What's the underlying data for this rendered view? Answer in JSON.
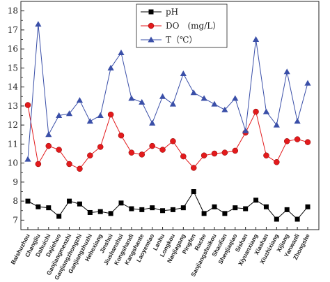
{
  "chart_data": {
    "type": "line",
    "title": "",
    "xlabel": "",
    "ylabel": "",
    "ylim": [
      6.5,
      18.5
    ],
    "yticks": [
      7,
      8,
      9,
      10,
      11,
      12,
      13,
      14,
      15,
      16,
      17,
      18
    ],
    "grid": false,
    "legend_position": "top-center",
    "categories": [
      "Baishuzhou",
      "Changliu",
      "Dahuichi",
      "Dajiehuo",
      "Ganjiangmenzhi",
      "Ganjiangzhongzhi",
      "Ganjiangzhuzhi",
      "Hehexiang",
      "Jinshui",
      "Jiushanshui",
      "Kongshandi",
      "Kangshante",
      "Laoyemiao",
      "Lanhu",
      "Longkou",
      "Nanjiagang",
      "Pingfen",
      "Rache",
      "Sanjiangshuikou",
      "Shaolian",
      "Shenjiaqiao",
      "Sishan",
      "Xiyuanxiang",
      "Xiashan",
      "Xiuzhixiang",
      "Xijiang",
      "Yanwanli",
      "Zhongshe"
    ],
    "series": [
      {
        "name": "pH",
        "color": "#000000",
        "marker": "square",
        "values": [
          8.0,
          7.7,
          7.65,
          7.2,
          8.0,
          7.85,
          7.4,
          7.45,
          7.35,
          7.9,
          7.6,
          7.55,
          7.65,
          7.5,
          7.55,
          7.65,
          8.5,
          7.35,
          7.7,
          7.35,
          7.65,
          7.6,
          8.05,
          7.7,
          7.05,
          7.55,
          7.05,
          7.7
        ]
      },
      {
        "name": "DO　(mg/L）",
        "color": "#e31a1c",
        "marker": "circle",
        "values": [
          13.05,
          9.95,
          10.9,
          10.7,
          9.95,
          9.7,
          10.4,
          10.85,
          12.55,
          11.45,
          10.55,
          10.45,
          10.9,
          10.7,
          11.15,
          10.35,
          9.75,
          10.4,
          10.5,
          10.55,
          10.65,
          11.6,
          12.7,
          10.4,
          10.05,
          11.15,
          11.25,
          11.1
        ]
      },
      {
        "name": "T（℃）",
        "color": "#3a4fa8",
        "marker": "triangle",
        "values": [
          10.2,
          17.3,
          11.5,
          12.5,
          12.6,
          13.3,
          12.2,
          12.5,
          15.0,
          15.8,
          13.4,
          13.2,
          12.1,
          13.5,
          13.1,
          14.7,
          13.7,
          13.4,
          13.1,
          12.8,
          13.4,
          11.7,
          16.5,
          12.7,
          12.0,
          14.8,
          12.2,
          14.2
        ]
      }
    ]
  }
}
